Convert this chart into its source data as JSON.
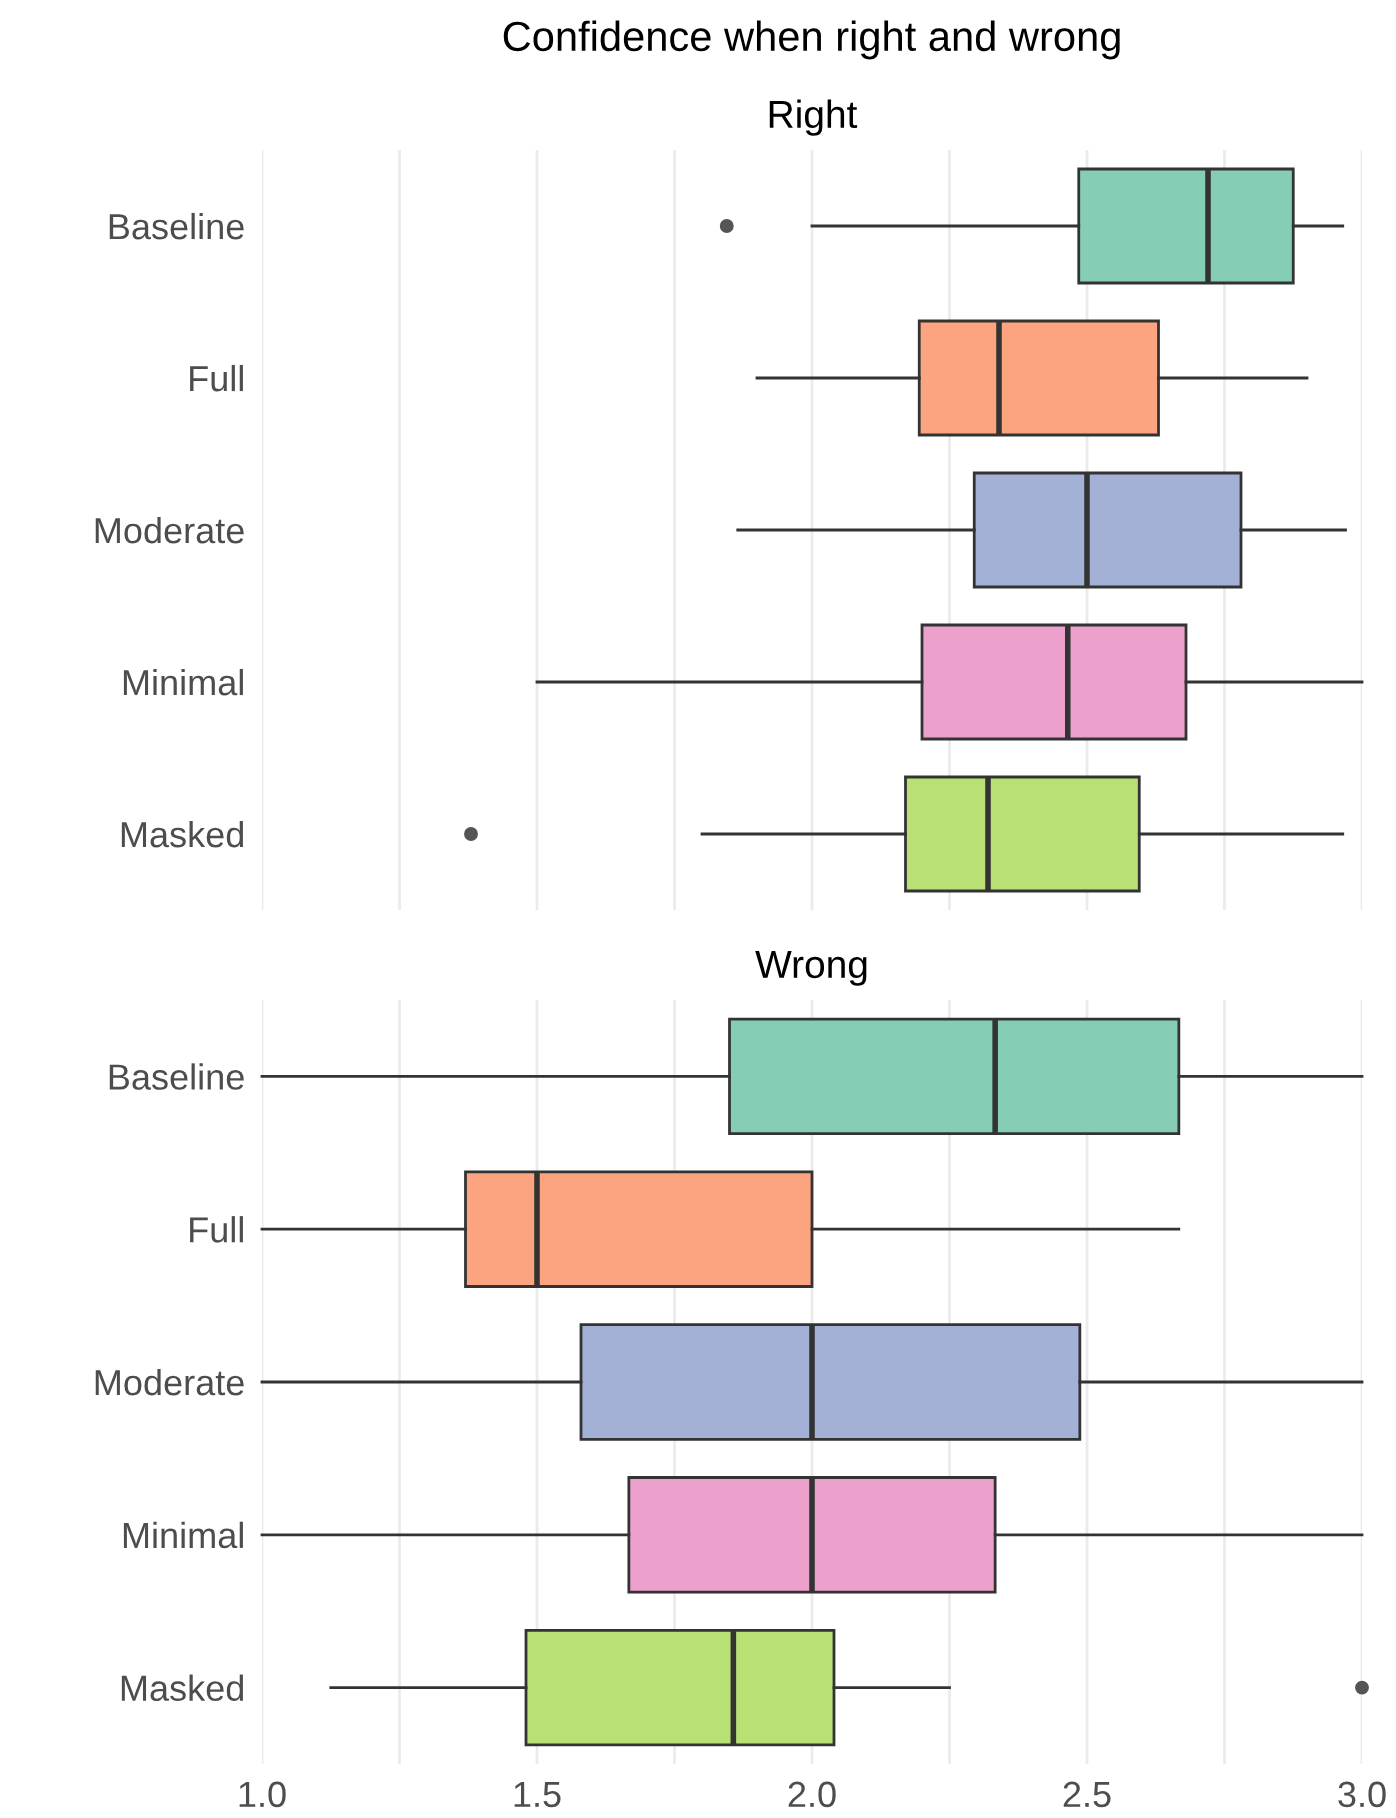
{
  "chart_data": [
    {
      "type": "box",
      "title": "Confidence when right and wrong",
      "subtitle": "Right",
      "orientation": "horizontal",
      "categories": [
        "Baseline",
        "Full",
        "Moderate",
        "Minimal",
        "Masked"
      ],
      "colors": [
        "#85ceb5",
        "#fca47f",
        "#a3b1d6",
        "#eca1cd",
        "#b9e075"
      ],
      "boxes": [
        {
          "low": 2.0,
          "q1": 2.485,
          "median": 2.72,
          "q3": 2.875,
          "high": 2.965,
          "outliers": [
            1.845
          ]
        },
        {
          "low": 1.9,
          "q1": 2.195,
          "median": 2.34,
          "q3": 2.63,
          "high": 2.9
        },
        {
          "low": 1.865,
          "q1": 2.295,
          "median": 2.5,
          "q3": 2.78,
          "high": 2.97
        },
        {
          "low": 1.5,
          "q1": 2.2,
          "median": 2.465,
          "q3": 2.68,
          "high": 3.0
        },
        {
          "low": 1.8,
          "q1": 2.17,
          "median": 2.32,
          "q3": 2.595,
          "high": 2.965,
          "outliers": [
            1.38
          ]
        }
      ],
      "xlim": [
        1.0,
        3.0
      ],
      "xticks": [
        {
          "value": 1.0,
          "label": null
        },
        {
          "value": 1.25,
          "label": null
        },
        {
          "value": 1.5,
          "label": null
        },
        {
          "value": 1.75,
          "label": null
        },
        {
          "value": 2.0,
          "label": null
        },
        {
          "value": 2.25,
          "label": null
        },
        {
          "value": 2.5,
          "label": null
        },
        {
          "value": 2.75,
          "label": null
        },
        {
          "value": 3.0,
          "label": null
        }
      ],
      "grid": "x",
      "tick_labels": "y"
    },
    {
      "type": "box",
      "subtitle": "Wrong",
      "orientation": "horizontal",
      "categories": [
        "Baseline",
        "Full",
        "Moderate",
        "Minimal",
        "Masked"
      ],
      "colors": [
        "#85ceb5",
        "#fca47f",
        "#a3b1d6",
        "#eca1cd",
        "#b9e075"
      ],
      "boxes": [
        {
          "low": 1.0,
          "q1": 1.85,
          "median": 2.333,
          "q3": 2.667,
          "high": 3.0
        },
        {
          "low": 1.0,
          "q1": 1.37,
          "median": 1.5,
          "q3": 2.0,
          "high": 2.667
        },
        {
          "low": 1.0,
          "q1": 1.58,
          "median": 2.0,
          "q3": 2.487,
          "high": 3.0
        },
        {
          "low": 1.0,
          "q1": 1.667,
          "median": 2.0,
          "q3": 2.333,
          "high": 3.0
        },
        {
          "low": 1.125,
          "q1": 1.48,
          "median": 1.857,
          "q3": 2.04,
          "high": 2.25,
          "outliers": [
            3.0
          ]
        }
      ],
      "xlim": [
        1.0,
        3.0
      ],
      "xticks": [
        {
          "value": 1.0,
          "label": "1.0"
        },
        {
          "value": 1.25,
          "label": null
        },
        1.5,
        {
          "value": 1.75,
          "label": null
        },
        {
          "value": 2.0,
          "label": "2.0"
        },
        {
          "value": 2.25,
          "label": null
        },
        2.5,
        {
          "value": 2.75,
          "label": null
        },
        {
          "value": 3.0,
          "label": "3.0"
        }
      ],
      "grid": "x"
    }
  ]
}
